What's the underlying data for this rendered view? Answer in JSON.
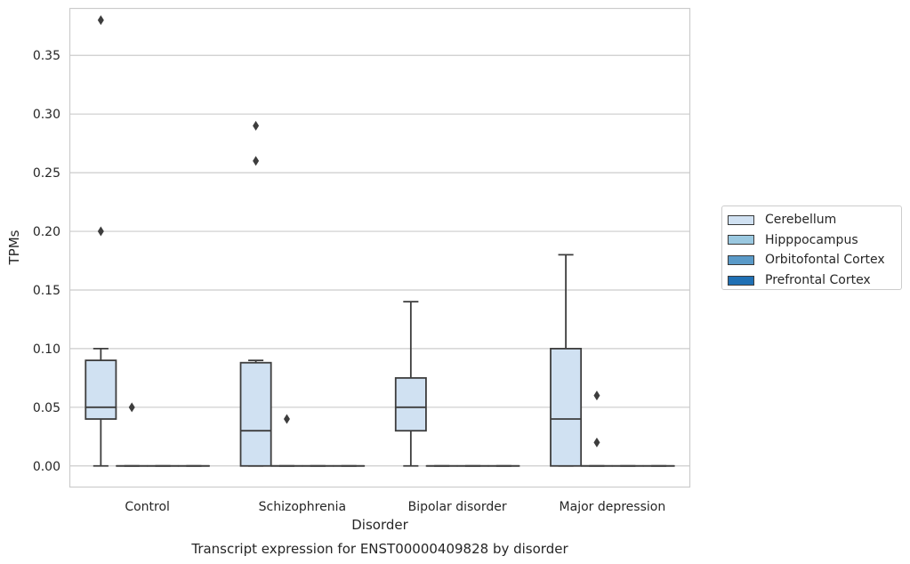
{
  "chart_data": {
    "type": "box",
    "title": "Transcript expression for ENST00000409828 by disorder",
    "xlabel": "Disorder",
    "ylabel": "TPMs",
    "ylim": [
      -0.018,
      0.39
    ],
    "yticks": [
      "0.00",
      "0.05",
      "0.10",
      "0.15",
      "0.20",
      "0.25",
      "0.30",
      "0.35"
    ],
    "categories": [
      "Control",
      "Schizophrenia",
      "Bipolar disorder",
      "Major depression"
    ],
    "grid": true,
    "legend_position": "right",
    "series": [
      {
        "name": "Cerebellum",
        "color": "#d0e1f2",
        "boxes": [
          {
            "category": "Control",
            "whisker_low": 0.0,
            "q1": 0.04,
            "median": 0.05,
            "q3": 0.09,
            "whisker_high": 0.1,
            "outliers": [
              0.2,
              0.38
            ]
          },
          {
            "category": "Schizophrenia",
            "whisker_low": 0.0,
            "q1": 0.0,
            "median": 0.03,
            "q3": 0.088,
            "whisker_high": 0.09,
            "outliers": [
              0.26,
              0.29
            ]
          },
          {
            "category": "Bipolar disorder",
            "whisker_low": 0.0,
            "q1": 0.03,
            "median": 0.05,
            "q3": 0.075,
            "whisker_high": 0.14,
            "outliers": []
          },
          {
            "category": "Major depression",
            "whisker_low": 0.0,
            "q1": 0.0,
            "median": 0.04,
            "q3": 0.1,
            "whisker_high": 0.18,
            "outliers": []
          }
        ]
      },
      {
        "name": "Hipppocampus",
        "color": "#9ac8e0",
        "boxes": [
          {
            "category": "Control",
            "whisker_low": 0.0,
            "q1": 0.0,
            "median": 0.0,
            "q3": 0.0,
            "whisker_high": 0.0,
            "outliers": [
              0.05
            ]
          },
          {
            "category": "Schizophrenia",
            "whisker_low": 0.0,
            "q1": 0.0,
            "median": 0.0,
            "q3": 0.0,
            "whisker_high": 0.0,
            "outliers": [
              0.04
            ]
          },
          {
            "category": "Bipolar disorder",
            "whisker_low": 0.0,
            "q1": 0.0,
            "median": 0.0,
            "q3": 0.0,
            "whisker_high": 0.0,
            "outliers": []
          },
          {
            "category": "Major depression",
            "whisker_low": 0.0,
            "q1": 0.0,
            "median": 0.0,
            "q3": 0.0,
            "whisker_high": 0.0,
            "outliers": [
              0.02,
              0.06
            ]
          }
        ]
      },
      {
        "name": "Orbitofontal Cortex",
        "color": "#5a9ac8",
        "boxes": [
          {
            "category": "Control",
            "whisker_low": 0.0,
            "q1": 0.0,
            "median": 0.0,
            "q3": 0.0,
            "whisker_high": 0.0,
            "outliers": []
          },
          {
            "category": "Schizophrenia",
            "whisker_low": 0.0,
            "q1": 0.0,
            "median": 0.0,
            "q3": 0.0,
            "whisker_high": 0.0,
            "outliers": []
          },
          {
            "category": "Bipolar disorder",
            "whisker_low": 0.0,
            "q1": 0.0,
            "median": 0.0,
            "q3": 0.0,
            "whisker_high": 0.0,
            "outliers": []
          },
          {
            "category": "Major depression",
            "whisker_low": 0.0,
            "q1": 0.0,
            "median": 0.0,
            "q3": 0.0,
            "whisker_high": 0.0,
            "outliers": []
          }
        ]
      },
      {
        "name": "Prefrontal Cortex",
        "color": "#2070b4",
        "boxes": [
          {
            "category": "Control",
            "whisker_low": 0.0,
            "q1": 0.0,
            "median": 0.0,
            "q3": 0.0,
            "whisker_high": 0.0,
            "outliers": []
          },
          {
            "category": "Schizophrenia",
            "whisker_low": 0.0,
            "q1": 0.0,
            "median": 0.0,
            "q3": 0.0,
            "whisker_high": 0.0,
            "outliers": []
          },
          {
            "category": "Bipolar disorder",
            "whisker_low": 0.0,
            "q1": 0.0,
            "median": 0.0,
            "q3": 0.0,
            "whisker_high": 0.0,
            "outliers": []
          },
          {
            "category": "Major depression",
            "whisker_low": 0.0,
            "q1": 0.0,
            "median": 0.0,
            "q3": 0.0,
            "whisker_high": 0.0,
            "outliers": []
          }
        ]
      }
    ]
  }
}
